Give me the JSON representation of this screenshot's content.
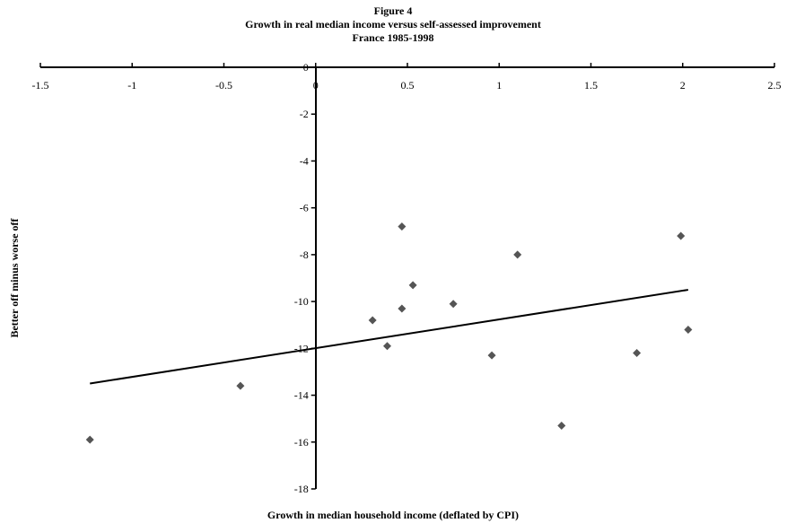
{
  "chart_data": {
    "type": "scatter",
    "title_lines": [
      "Figure 4",
      "Growth in real median income versus self-assessed improvement",
      "France 1985-1998"
    ],
    "xlabel": "Growth in median household income (deflated by CPI)",
    "ylabel": "Better off minus worse off",
    "xlim": [
      -1.5,
      2.5
    ],
    "ylim": [
      -18,
      0
    ],
    "x_ticks": [
      -1.5,
      -1,
      -0.5,
      0,
      0.5,
      1,
      1.5,
      2,
      2.5
    ],
    "x_tick_labels": [
      "-1.5",
      "-1",
      "-0.5",
      "0",
      "0.5",
      "1",
      "1.5",
      "2",
      "2.5"
    ],
    "y_ticks": [
      0,
      -2,
      -4,
      -6,
      -8,
      -10,
      -12,
      -14,
      -16,
      -18
    ],
    "y_tick_labels": [
      "0",
      "-2",
      "-4",
      "-6",
      "-8",
      "-10",
      "-12",
      "-14",
      "-16",
      "-18"
    ],
    "x_axis_position": "top",
    "grid": false,
    "marker": "diamond",
    "marker_color": "#555555",
    "line_color": "#000000",
    "points": [
      {
        "x": -1.23,
        "y": -15.9
      },
      {
        "x": -0.41,
        "y": -13.6
      },
      {
        "x": 0.31,
        "y": -10.8
      },
      {
        "x": 0.39,
        "y": -11.9
      },
      {
        "x": 0.47,
        "y": -6.8
      },
      {
        "x": 0.47,
        "y": -10.3
      },
      {
        "x": 0.53,
        "y": -9.3
      },
      {
        "x": 0.75,
        "y": -10.1
      },
      {
        "x": 0.96,
        "y": -12.3
      },
      {
        "x": 1.1,
        "y": -8.0
      },
      {
        "x": 1.34,
        "y": -15.3
      },
      {
        "x": 1.75,
        "y": -12.2
      },
      {
        "x": 1.99,
        "y": -7.2
      },
      {
        "x": 2.03,
        "y": -11.2
      }
    ],
    "trend_line": {
      "x": [
        -1.23,
        2.03
      ],
      "y": [
        -13.5,
        -9.5
      ]
    }
  }
}
